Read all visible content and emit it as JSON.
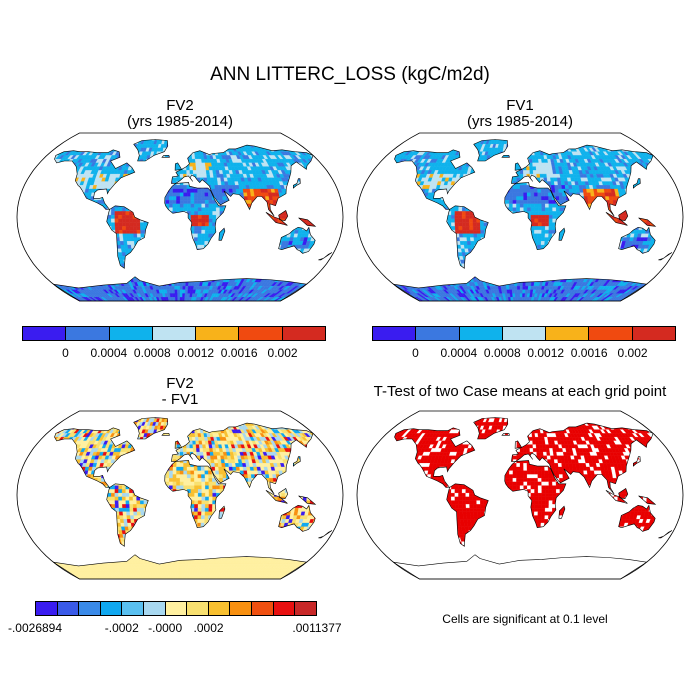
{
  "main_title": "ANN LITTERC_LOSS (kgC/m2d)",
  "panels": [
    {
      "id": "fv2",
      "line1": "FV2",
      "line2": "(yrs 1985-2014)"
    },
    {
      "id": "fv1",
      "line1": "FV1",
      "line2": "(yrs 1985-2014)"
    },
    {
      "id": "diff",
      "line1": "FV2",
      "line2": " - FV1"
    },
    {
      "id": "ttest",
      "line1": "T-Test of two Case means at each grid point",
      "line2": ""
    }
  ],
  "colorbar_abs": {
    "colors": [
      "#3a1cf0",
      "#3b78e0",
      "#0fb2ec",
      "#bfe3f2",
      "#f8b21a",
      "#f04a10",
      "#d42a20"
    ],
    "tick_labels": [
      "0",
      "0.0004",
      "0.0008",
      "0.0012",
      "0.0016",
      "0.002"
    ]
  },
  "colorbar_diff": {
    "colors": [
      "#3a1cf0",
      "#3a5ae8",
      "#3a8ae8",
      "#10a8f0",
      "#5ac0f0",
      "#a8d8f0",
      "#fff0a0",
      "#f8e070",
      "#f8c030",
      "#f89010",
      "#f05010",
      "#e81010",
      "#c82828"
    ],
    "tick_labels": [
      "-.0026894",
      "-.0002",
      "-.0000",
      ".0002",
      ".0011377"
    ]
  },
  "significance_note": "Cells are significant at 0.1 level",
  "colors": {
    "ocean": "#ffffff",
    "significant": "#e80000",
    "land_base_abs": "#3b78e0",
    "land_base_diff": "#fff0a0"
  }
}
